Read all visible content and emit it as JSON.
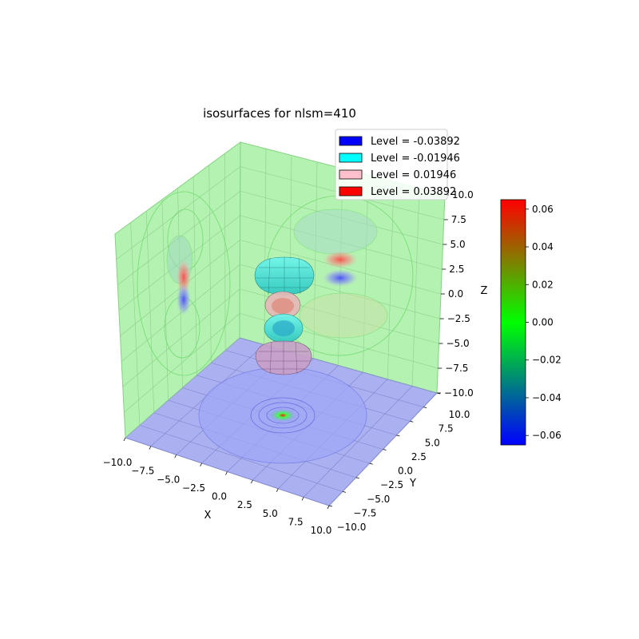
{
  "chart_data": {
    "type": "3d-isosurface",
    "title": "isosurfaces for nlsm=410",
    "xlabel": "X",
    "ylabel": "Y",
    "zlabel": "Z",
    "xlim": [
      -10,
      10
    ],
    "ylim": [
      -10,
      10
    ],
    "zlim": [
      -10,
      10
    ],
    "x_ticks": [
      "−10.0",
      "−7.5",
      "−5.0",
      "−2.5",
      "0.0",
      "2.5",
      "5.0",
      "7.5",
      "10.0"
    ],
    "y_ticks": [
      "−10.0",
      "−7.5",
      "−5.0",
      "−2.5",
      "0.0",
      "2.5",
      "5.0",
      "7.5",
      "10.0"
    ],
    "z_ticks": [
      "10.0",
      "7.5",
      "5.0",
      "2.5",
      "0.0",
      "−2.5",
      "−5.0",
      "−7.5",
      "−10.0"
    ],
    "grid": true,
    "legend_position": "top-right",
    "levels": [
      {
        "label": "Level = -0.03892",
        "value": -0.03892,
        "color": "#0000ff"
      },
      {
        "label": "Level = -0.01946",
        "value": -0.01946,
        "color": "#00ffff"
      },
      {
        "label": "Level = 0.01946",
        "value": 0.01946,
        "color": "#ffc0cb"
      },
      {
        "label": "Level = 0.03892",
        "value": 0.03892,
        "color": "#ff0000"
      }
    ],
    "colorbar": {
      "range": [
        -0.065,
        0.065
      ],
      "ticks": [
        "0.06",
        "0.04",
        "0.02",
        "0.00",
        "−0.02",
        "−0.04",
        "−0.06"
      ],
      "colors": [
        "#ff0000",
        "#00ff00",
        "#0000ff"
      ]
    },
    "pane_colors": {
      "walls": "#b3f2b0",
      "floor": "#aab0f0"
    }
  }
}
